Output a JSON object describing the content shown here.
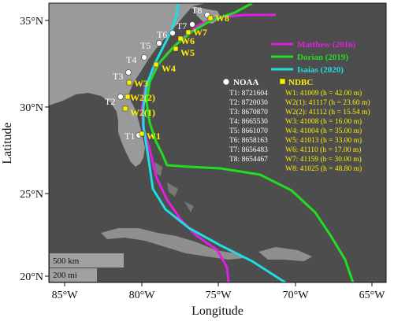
{
  "axes": {
    "x_label": "Longitude",
    "y_label": "Latitude",
    "x_ticks": [
      "85°W",
      "80°W",
      "75°W",
      "70°W",
      "65°W"
    ],
    "y_ticks": [
      "35°N",
      "30°N",
      "25°N",
      "20°N"
    ]
  },
  "legend": {
    "items": [
      {
        "name": "Matthew (2016)",
        "color": "#e020e0"
      },
      {
        "name": "Dorian (2019)",
        "color": "#22dd22"
      },
      {
        "name": "Isaias (2020)",
        "color": "#22dde0"
      }
    ]
  },
  "noaa": {
    "title": "NOAA",
    "stations": [
      "T1: 8721604",
      "T2: 8720030",
      "T3: 8670870",
      "T4: 8665530",
      "T5: 8661070",
      "T6: 8658163",
      "T7: 8656483",
      "T8: 8654467"
    ]
  },
  "ndbc": {
    "title": "NDBC",
    "color": "#ffee00",
    "buoys": [
      "W1: 41009 (h = 42.00 m)",
      "W2(1): 41117 (h = 23.60 m)",
      "W2(2): 41112 (h = 15.54 m)",
      "W3: 41008 (h = 16.00 m)",
      "W4: 41004 (h = 35.00 m)",
      "W5: 41013 (h = 33.00 m)",
      "W6: 41110 (h = 17.00 m)",
      "W7: 41159 (h = 30.00 m)",
      "W8: 41025 (h = 48.80 m)"
    ]
  },
  "map_labels": {
    "noaa": [
      "T1",
      "T2",
      "T3",
      "T4",
      "T5",
      "T6",
      "T7",
      "T8"
    ],
    "ndbc": [
      "W1",
      "W2(1)",
      "W2(2)",
      "W3",
      "W4",
      "W5",
      "W6",
      "W7",
      "W8"
    ]
  },
  "scale": {
    "km": "500 km",
    "mi": "200 mi"
  }
}
